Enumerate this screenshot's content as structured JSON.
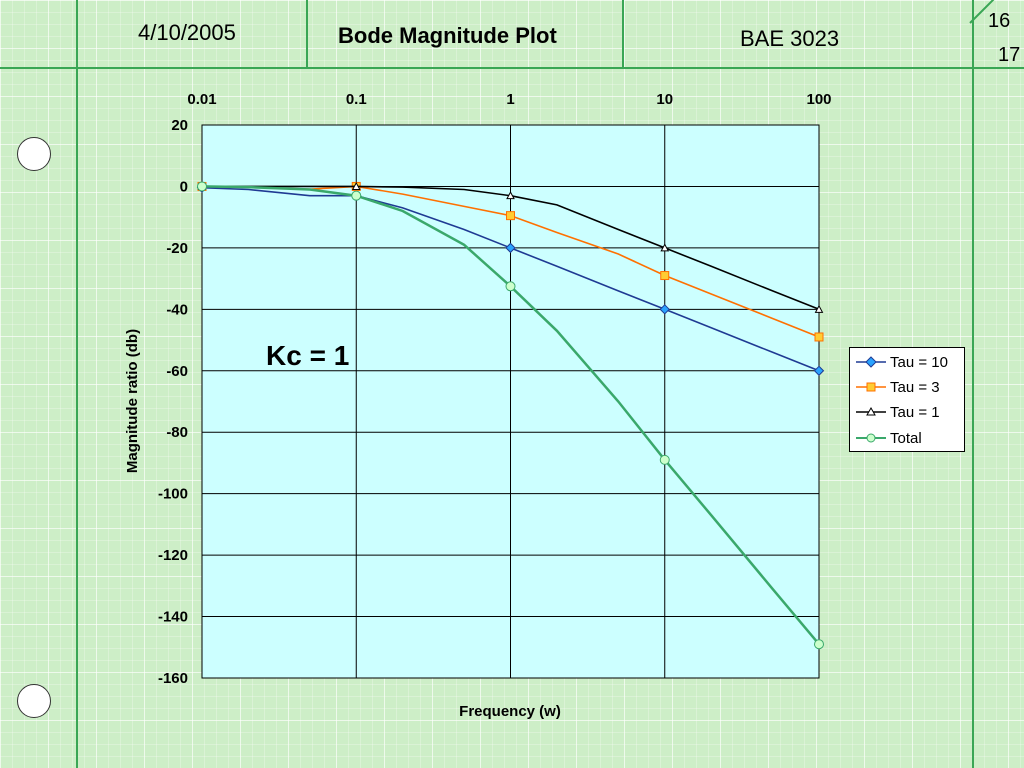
{
  "header": {
    "date": "4/10/2005",
    "title": "Bode Magnitude Plot",
    "course": "BAE 3023",
    "page_current": "16",
    "page_total": "17"
  },
  "annotation": "Kc = 1",
  "colors": {
    "plot_bg": "#ccffff",
    "page_bg": "#cdeec7",
    "tau10": "#1f3a93",
    "tau3": "#ff7000",
    "tau1": "#000000",
    "total": "#3aa86b"
  },
  "chart_data": {
    "type": "line",
    "xscale": "log",
    "xlim": [
      0.01,
      100
    ],
    "ylim": [
      -160,
      20
    ],
    "x_ticks": [
      "0.01",
      "0.1",
      "1",
      "10",
      "100"
    ],
    "y_ticks": [
      "20",
      "0",
      "-20",
      "-40",
      "-60",
      "-80",
      "-100",
      "-120",
      "-140",
      "-160"
    ],
    "xlabel": "Frequency (w)",
    "ylabel": "Magnitude ratio (db)",
    "grid": true,
    "legend_position": "right",
    "series": [
      {
        "name": "Tau = 10",
        "color": "#1f3a93",
        "marker": "diamond",
        "x": [
          0.01,
          0.02,
          0.05,
          0.1,
          0.2,
          0.5,
          1,
          2,
          5,
          10,
          20,
          50,
          100
        ],
        "y": [
          -0.4,
          -1.0,
          -3.0,
          -3.0,
          -7.0,
          -14.0,
          -20.0,
          -26.0,
          -34.0,
          -40.0,
          -46.0,
          -54.0,
          -60.0
        ]
      },
      {
        "name": "Tau = 3",
        "color": "#ff7000",
        "marker": "square",
        "x": [
          0.01,
          0.02,
          0.05,
          0.1,
          0.2,
          0.5,
          1,
          2,
          5,
          10,
          20,
          50,
          100
        ],
        "y": [
          0.0,
          -0.2,
          -0.9,
          0.0,
          -2.5,
          -6.5,
          -9.5,
          -15.0,
          -22.0,
          -29.0,
          -35.0,
          -43.0,
          -49.0
        ]
      },
      {
        "name": "Tau = 1",
        "color": "#000000",
        "marker": "triangle",
        "x": [
          0.01,
          0.02,
          0.05,
          0.1,
          0.2,
          0.5,
          1,
          2,
          5,
          10,
          20,
          50,
          100
        ],
        "y": [
          0.0,
          0.0,
          0.0,
          0.0,
          -0.2,
          -1.0,
          -3.0,
          -6.0,
          -14.0,
          -20.0,
          -26.0,
          -34.0,
          -40.0
        ]
      },
      {
        "name": "Total",
        "color": "#3aa86b",
        "marker": "circle",
        "x": [
          0.01,
          0.02,
          0.05,
          0.1,
          0.2,
          0.5,
          1,
          2,
          5,
          10,
          20,
          50,
          100
        ],
        "y": [
          0.0,
          -0.2,
          -1.0,
          -3.0,
          -8.0,
          -19.0,
          -32.5,
          -47.0,
          -70.0,
          -89.0,
          -107.0,
          -131.0,
          -149.0
        ]
      }
    ]
  }
}
